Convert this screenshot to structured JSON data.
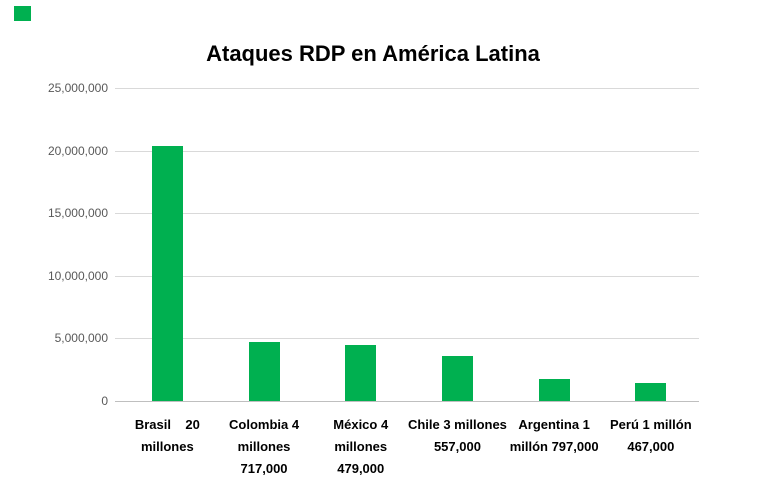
{
  "decoration": {
    "corner_square_color": "#00B050"
  },
  "colors": {
    "bar": "#00B050",
    "gridline": "#D9D9D9",
    "axis_line": "#BFBFBF",
    "tick_label": "#595959",
    "text": "#000000"
  },
  "chart_data": {
    "type": "bar",
    "title": "Ataques RDP en América Latina",
    "xlabel": "",
    "ylabel": "",
    "categories": [
      "Brasil",
      "Colombia",
      "México",
      "Chile",
      "Argentina",
      "Perú"
    ],
    "values": [
      20360000,
      4717000,
      4479000,
      3557000,
      1797000,
      1467000
    ],
    "category_label_lines": [
      [
        "Brasil    20",
        "millones"
      ],
      [
        "Colombia 4",
        "millones",
        "717,000"
      ],
      [
        "México 4",
        "millones",
        "479,000"
      ],
      [
        "Chile 3 millones",
        "557,000"
      ],
      [
        "Argentina 1",
        "millón 797,000"
      ],
      [
        "Perú 1 millón",
        "467,000"
      ]
    ],
    "ylim": [
      0,
      25000000
    ],
    "yticks": {
      "values": [
        25000000,
        20000000,
        15000000,
        10000000,
        5000000,
        0
      ],
      "labels": [
        "25,000,000",
        "20,000,000",
        "15,000,000",
        "10,000,000",
        "5,000,000",
        "0"
      ]
    },
    "grid": true,
    "legend": false,
    "bar_color": "#00B050"
  }
}
